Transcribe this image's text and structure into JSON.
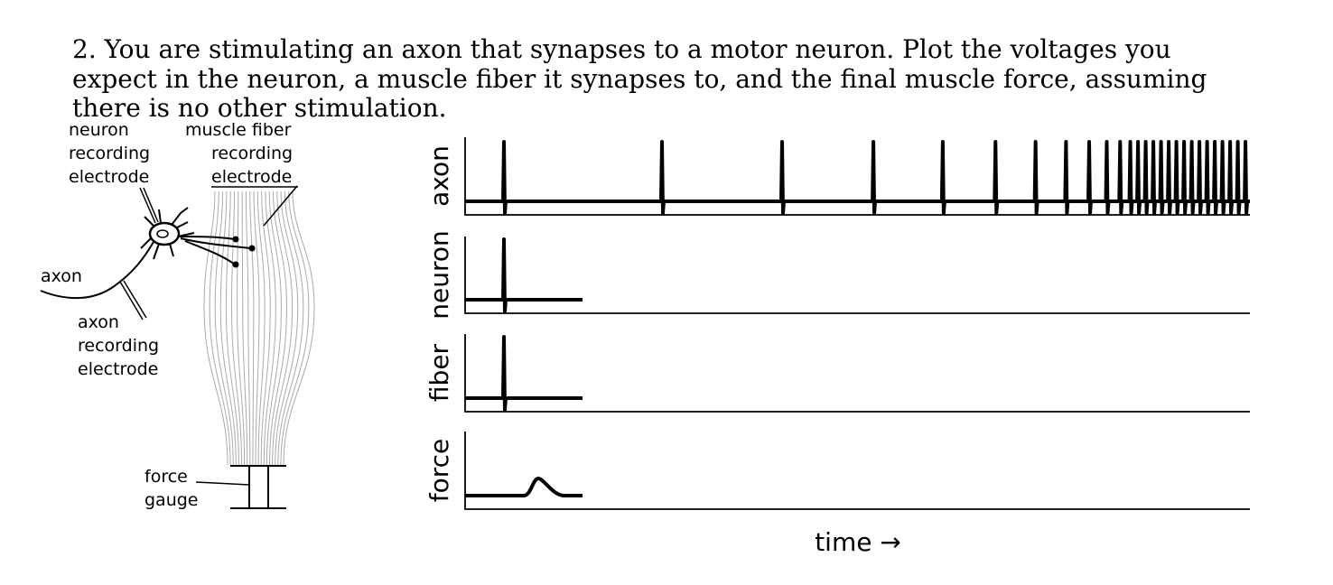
{
  "question": {
    "lines": [
      "2. You are stimulating an axon that synapses to a motor neuron. Plot the voltages you",
      "expect in the neuron, a muscle fiber it synapses to, and the final muscle force, assuming",
      "there is no other stimulation."
    ]
  },
  "diagram": {
    "neuron_electrode": [
      "neuron",
      "recording",
      "electrode"
    ],
    "fiber_electrode": [
      "muscle fiber",
      "recording",
      "electrode"
    ],
    "axon": "axon",
    "axon_electrode": [
      "axon",
      "recording",
      "electrode"
    ],
    "force_gauge": [
      "force",
      "gauge"
    ]
  },
  "panels": [
    "axon",
    "neuron",
    "fiber",
    "force"
  ],
  "x_label": "time →"
}
